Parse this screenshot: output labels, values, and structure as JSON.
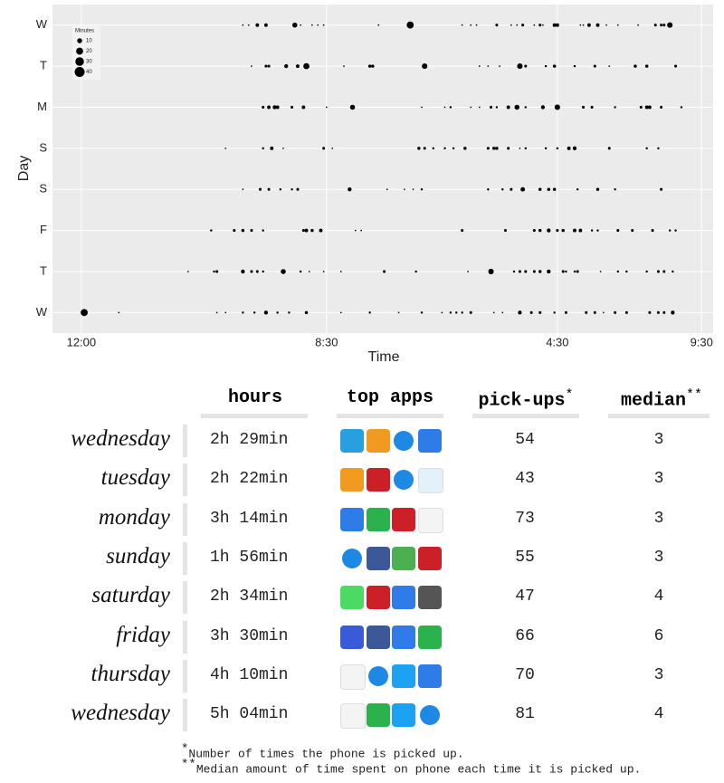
{
  "chart_data": {
    "type": "scatter",
    "xlabel": "Time",
    "ylabel": "Day",
    "color": "#000000",
    "grid": true,
    "xlim": [
      -1,
      21.9
    ],
    "xticks": [
      {
        "value": 0,
        "label": "12:00"
      },
      {
        "value": 8.5,
        "label": "8:30"
      },
      {
        "value": 16.5,
        "label": "4:30"
      },
      {
        "value": 21.5,
        "label": "9:30"
      }
    ],
    "size_legend": {
      "title": "Minutes",
      "values": [
        10,
        20,
        30,
        40
      ]
    },
    "series": [
      {
        "name": "W",
        "x": [
          0.1,
          1.3,
          4.7,
          5.0,
          5.6,
          6.0,
          6.4,
          6.8,
          7.2,
          7.8,
          9.0,
          10.0,
          11.0,
          11.8,
          12.5,
          12.8,
          13.0,
          13.2,
          13.5,
          14.3,
          14.6,
          15.2,
          15.6,
          15.9,
          16.4,
          16.8,
          17.5,
          17.8,
          18.1,
          18.5,
          18.9,
          19.7,
          20.0,
          20.2,
          20.5
        ],
        "sizes": [
          20,
          1,
          1,
          1,
          2,
          2,
          6,
          2,
          2,
          4,
          1,
          2,
          1,
          2,
          1,
          2,
          2,
          2,
          3,
          1,
          1,
          6,
          3,
          3,
          2,
          3,
          3,
          3,
          1,
          3,
          3,
          3,
          3,
          3,
          6
        ]
      },
      {
        "name": "T",
        "x": [
          3.7,
          4.6,
          4.7,
          5.6,
          5.9,
          6.1,
          6.3,
          7.0,
          7.6,
          7.9,
          8.4,
          9.0,
          10.5,
          11.6,
          13.4,
          14.2,
          15.0,
          15.2,
          15.4,
          15.7,
          15.9,
          16.2,
          16.7,
          16.8,
          17.1,
          17.2,
          18.0,
          18.6,
          18.9,
          19.6,
          20.0,
          20.2,
          20.5
        ],
        "sizes": [
          1,
          2,
          3,
          6,
          3,
          3,
          2,
          10,
          2,
          1,
          1,
          1,
          3,
          2,
          1,
          12,
          2,
          3,
          3,
          3,
          4,
          6,
          3,
          2,
          2,
          3,
          1,
          2,
          2,
          2,
          3,
          3,
          2
        ]
      },
      {
        "name": "F",
        "x": [
          4.5,
          5.3,
          5.6,
          5.9,
          6.3,
          7.7,
          7.8,
          8.0,
          8.3,
          9.5,
          9.7,
          13.2,
          14.7,
          15.7,
          15.9,
          16.2,
          16.5,
          16.7,
          17.1,
          17.3,
          17.7,
          17.9,
          18.6,
          19.1,
          19.8,
          20.4,
          20.6
        ],
        "sizes": [
          2,
          3,
          4,
          3,
          2,
          3,
          5,
          4,
          5,
          1,
          1,
          3,
          3,
          3,
          4,
          6,
          3,
          4,
          5,
          5,
          2,
          2,
          3,
          3,
          3,
          2,
          2
        ]
      },
      {
        "name": "S",
        "x": [
          5.6,
          6.2,
          6.5,
          6.9,
          7.3,
          7.5,
          9.3,
          10.6,
          11.2,
          11.5,
          11.8,
          14.1,
          14.6,
          14.9,
          15.3,
          15.9,
          16.2,
          16.4,
          17.2,
          17.9,
          18.5,
          20.1
        ],
        "sizes": [
          1,
          3,
          3,
          2,
          2,
          3,
          6,
          1,
          1,
          1,
          2,
          2,
          2,
          3,
          8,
          4,
          4,
          4,
          2,
          4,
          2,
          3
        ]
      },
      {
        "name": "S",
        "x": [
          5.0,
          6.3,
          6.6,
          7.0,
          8.4,
          8.7,
          11.7,
          11.9,
          12.2,
          12.6,
          12.9,
          13.3,
          14.1,
          14.3,
          14.4,
          14.8,
          15.2,
          15.4,
          16.1,
          16.5,
          16.9,
          17.1,
          18.3,
          19.6,
          20.0
        ],
        "sizes": [
          1,
          2,
          5,
          1,
          3,
          1,
          4,
          3,
          2,
          2,
          2,
          4,
          3,
          4,
          4,
          3,
          1,
          2,
          2,
          2,
          5,
          6,
          3,
          2,
          2
        ]
      },
      {
        "name": "M",
        "x": [
          6.3,
          6.5,
          6.7,
          6.8,
          7.3,
          7.7,
          8.5,
          9.4,
          11.8,
          12.6,
          12.8,
          13.5,
          13.8,
          14.2,
          14.4,
          14.8,
          15.1,
          15.4,
          16.0,
          16.5,
          17.4,
          17.7,
          18.5,
          19.4,
          19.6,
          19.7,
          20.1,
          20.8
        ],
        "sizes": [
          3,
          5,
          6,
          5,
          3,
          5,
          1,
          10,
          1,
          1,
          2,
          1,
          1,
          3,
          2,
          5,
          10,
          2,
          6,
          12,
          3,
          3,
          2,
          3,
          5,
          5,
          3,
          2
        ]
      },
      {
        "name": "T",
        "x": [
          5.9,
          6.4,
          6.5,
          7.1,
          7.5,
          7.8,
          9.1,
          10.0,
          10.1,
          11.9,
          13.8,
          14.1,
          14.5,
          15.2,
          15.4,
          16.1,
          16.4,
          17.1,
          17.8,
          18.3,
          19.2,
          19.6,
          20.6
        ],
        "sizes": [
          1,
          3,
          3,
          6,
          5,
          15,
          1,
          4,
          4,
          12,
          1,
          1,
          1,
          12,
          3,
          2,
          4,
          2,
          3,
          1,
          4,
          4,
          3
        ]
      },
      {
        "name": "W",
        "x": [
          5.6,
          5.8,
          6.1,
          6.4,
          7.4,
          7.6,
          8.0,
          8.2,
          8.4,
          10.3,
          11.4,
          13.2,
          13.5,
          13.7,
          14.4,
          14.9,
          15.1,
          15.3,
          15.7,
          15.9,
          16.0,
          16.4,
          16.5,
          17.3,
          17.4,
          17.6,
          17.9,
          18.2,
          18.6,
          19.3,
          19.9,
          20.1,
          20.2,
          20.4
        ],
        "sizes": [
          1,
          1,
          5,
          5,
          10,
          1,
          1,
          1,
          1,
          1,
          20,
          1,
          1,
          1,
          3,
          1,
          1,
          3,
          1,
          3,
          1,
          5,
          5,
          1,
          1,
          5,
          5,
          1,
          1,
          1,
          3,
          3,
          3,
          12
        ]
      }
    ]
  },
  "table": {
    "headers": [
      {
        "text": "hours"
      },
      {
        "text": "top apps"
      },
      {
        "text": "pick-ups",
        "mark": "*"
      },
      {
        "text": "median",
        "mark": "**"
      }
    ],
    "rows": [
      [
        "wednesday",
        "2h 29min",
        54,
        3
      ],
      [
        "tuesday",
        "2h 22min",
        43,
        3
      ],
      [
        "monday",
        "3h 14min",
        73,
        3
      ],
      [
        "sunday",
        "1h 56min",
        55,
        3
      ],
      [
        "saturday",
        "2h 34min",
        47,
        4
      ],
      [
        "friday",
        "3h 30min",
        66,
        6
      ],
      [
        "thursday",
        "4h 10min",
        70,
        3
      ],
      [
        "wednesday",
        "5h 04min",
        81,
        4
      ]
    ],
    "footnotes": [
      {
        "mark": "*",
        "text": "Number of times the phone is picked up."
      },
      {
        "mark": "**",
        "text": "Median amount of time spent on phone each time it is picked up."
      }
    ]
  }
}
